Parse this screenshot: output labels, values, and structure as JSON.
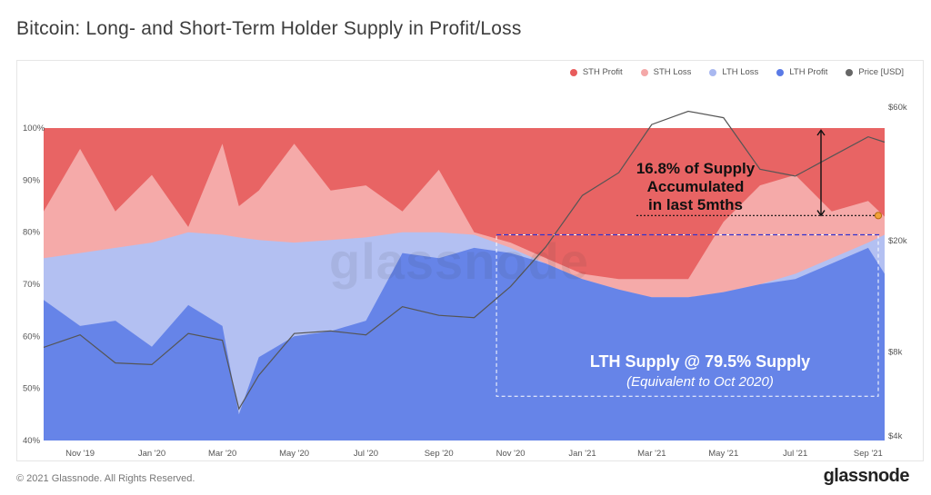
{
  "title": "Bitcoin: Long- and Short-Term Holder Supply in Profit/Loss",
  "footer": "© 2021 Glassnode. All Rights Reserved.",
  "brand": "glassnode",
  "watermark": "glassnode",
  "legend": [
    {
      "label": "STH Profit",
      "color": "#e85c5c"
    },
    {
      "label": "STH Loss",
      "color": "#f4a8a8"
    },
    {
      "label": "LTH Loss",
      "color": "#a9b8f0"
    },
    {
      "label": "LTH Profit",
      "color": "#5a7ae6"
    },
    {
      "label": "Price [USD]",
      "color": "#666666"
    }
  ],
  "annotations": {
    "accumulated_line1": "16.8% of Supply",
    "accumulated_line2": "Accumulated",
    "accumulated_line3": "in last 5mths",
    "lth_line1": "LTH Supply @ 79.5% Supply",
    "lth_line2": "(Equivalent to Oct 2020)"
  },
  "chart_data": {
    "type": "area",
    "title": "Bitcoin: Long- and Short-Term Holder Supply in Profit/Loss",
    "xlabel": "",
    "ylabel": "",
    "y_left_ticks": [
      "40%",
      "50%",
      "60%",
      "70%",
      "80%",
      "90%",
      "100%"
    ],
    "y_left_range": [
      40,
      100
    ],
    "y_right_ticks": [
      "$4k",
      "$8k",
      "$20k",
      "$60k"
    ],
    "y_right_scale": "log",
    "x_ticks": [
      "Nov '19",
      "Jan '20",
      "Mar '20",
      "May '20",
      "Jul '20",
      "Sep '20",
      "Nov '20",
      "Jan '21",
      "Mar '21",
      "May '21",
      "Jul '21",
      "Sep '21"
    ],
    "x": [
      "2019-10-01",
      "2019-11-01",
      "2019-12-01",
      "2020-01-01",
      "2020-02-01",
      "2020-03-01",
      "2020-03-15",
      "2020-04-01",
      "2020-05-01",
      "2020-06-01",
      "2020-07-01",
      "2020-08-01",
      "2020-09-01",
      "2020-10-01",
      "2020-11-01",
      "2020-12-01",
      "2021-01-01",
      "2021-02-01",
      "2021-03-01",
      "2021-04-01",
      "2021-05-01",
      "2021-06-01",
      "2021-07-01",
      "2021-08-01",
      "2021-09-01",
      "2021-09-15"
    ],
    "series": [
      {
        "name": "LTH Profit",
        "values": [
          67,
          62,
          63,
          58,
          66,
          62,
          45,
          56,
          60,
          61,
          63,
          76,
          75,
          77,
          76,
          74,
          71,
          69,
          67.5,
          67.5,
          68.5,
          70,
          71,
          74,
          77,
          72
        ]
      },
      {
        "name": "LTH Loss",
        "values": [
          75,
          76,
          77,
          78,
          80,
          79.5,
          79,
          78.5,
          78,
          78.5,
          79,
          80,
          80,
          79.5,
          77,
          74,
          71,
          69,
          67.5,
          67.5,
          68.5,
          70,
          72,
          75,
          78,
          79.5
        ]
      },
      {
        "name": "STH Loss",
        "values": [
          84,
          96,
          84,
          91,
          81,
          97,
          85,
          88,
          97,
          88,
          89,
          84,
          92,
          80,
          78,
          75,
          72,
          71,
          71,
          71,
          82,
          89,
          91,
          84,
          86,
          83
        ]
      },
      {
        "name": "STH Profit",
        "values": [
          100,
          100,
          100,
          100,
          100,
          100,
          100,
          100,
          100,
          100,
          100,
          100,
          100,
          100,
          100,
          100,
          100,
          100,
          100,
          100,
          100,
          100,
          100,
          100,
          100,
          100
        ]
      },
      {
        "name": "Price [USD]",
        "values": [
          8300,
          9200,
          7300,
          7200,
          9300,
          8800,
          5000,
          6600,
          9300,
          9500,
          9200,
          11600,
          10800,
          10600,
          13700,
          19000,
          29000,
          35000,
          52000,
          58000,
          55000,
          36000,
          34000,
          40000,
          47000,
          45000
        ]
      }
    ]
  }
}
